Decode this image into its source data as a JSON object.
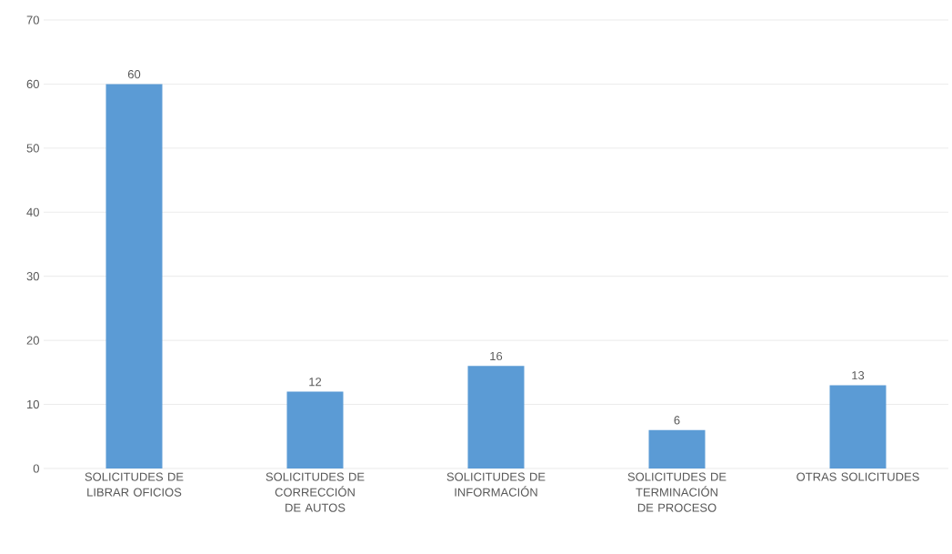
{
  "chart_data": {
    "type": "bar",
    "categories": [
      "SOLICITUDES DE LIBRAR OFICIOS",
      "SOLICITUDES DE CORRECCIÓN DE AUTOS",
      "SOLICITUDES DE INFORMACIÓN",
      "SOLICITUDES DE TERMINACIÓN DE PROCESO",
      "OTRAS SOLICITUDES"
    ],
    "values": [
      60,
      12,
      16,
      6,
      13
    ],
    "color": "#5b9bd5",
    "ylim": [
      0,
      70
    ],
    "yticks": [
      0,
      10,
      20,
      30,
      40,
      50,
      60,
      70
    ],
    "grid": "y",
    "data_labels": true
  }
}
